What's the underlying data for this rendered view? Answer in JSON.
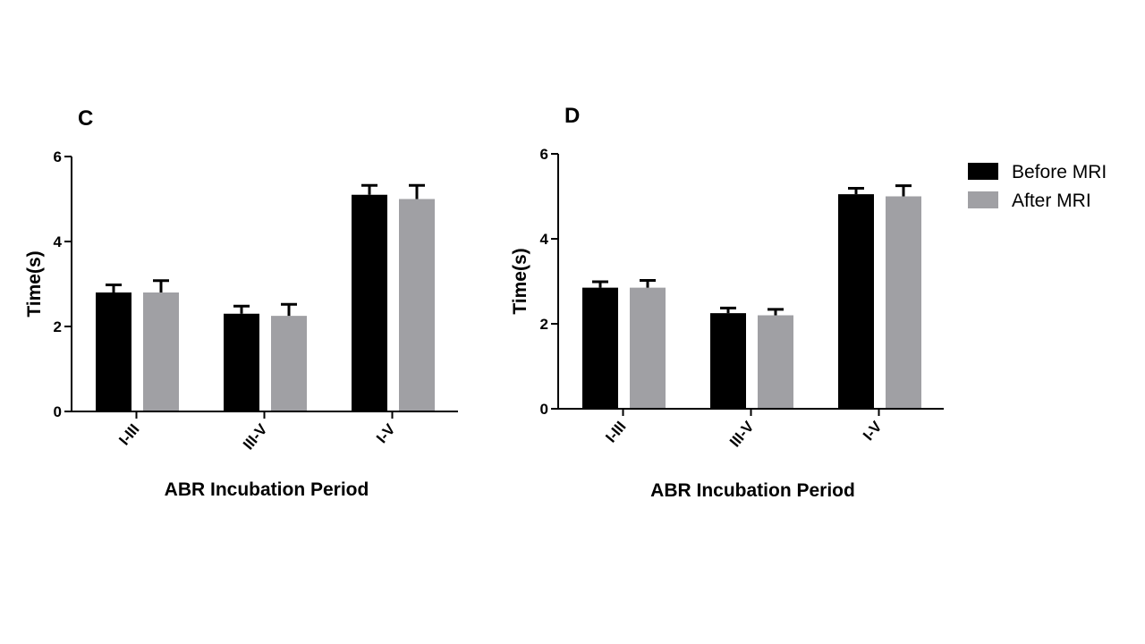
{
  "chart_data": [
    {
      "panel": "C",
      "type": "bar",
      "categories": [
        "I-III",
        "III-V",
        "I-V"
      ],
      "series": [
        {
          "name": "Before MRI",
          "values": [
            2.8,
            2.3,
            5.1
          ],
          "errors": [
            0.18,
            0.18,
            0.22
          ],
          "color": "#000000"
        },
        {
          "name": "After MRI",
          "values": [
            2.8,
            2.25,
            5.0
          ],
          "errors": [
            0.28,
            0.27,
            0.32
          ],
          "color": "#a0a0a4"
        }
      ],
      "xlabel": "ABR Incubation Period",
      "ylabel": "Time(s)",
      "ylim": [
        0,
        6
      ],
      "yticks": [
        0,
        2,
        4,
        6
      ],
      "ytick_labels": [
        "0",
        "2",
        "4",
        "6"
      ]
    },
    {
      "panel": "D",
      "type": "bar",
      "categories": [
        "I-III",
        "III-V",
        "I-V"
      ],
      "series": [
        {
          "name": "Before MRI",
          "values": [
            2.85,
            2.25,
            5.05
          ],
          "errors": [
            0.14,
            0.12,
            0.14
          ],
          "color": "#000000"
        },
        {
          "name": "After MRI",
          "values": [
            2.85,
            2.2,
            5.0
          ],
          "errors": [
            0.17,
            0.14,
            0.25
          ],
          "color": "#a0a0a4"
        }
      ],
      "xlabel": "ABR Incubation Period",
      "ylabel": "Time(s)",
      "ylim": [
        0,
        6
      ],
      "yticks": [
        0,
        2,
        4,
        6
      ],
      "ytick_labels": [
        "0",
        "2",
        "4",
        "6"
      ]
    }
  ],
  "legend": {
    "placement": "right",
    "entries": [
      {
        "label": "Before MRI",
        "color": "#000000"
      },
      {
        "label": "After MRI",
        "color": "#a0a0a4"
      }
    ]
  }
}
